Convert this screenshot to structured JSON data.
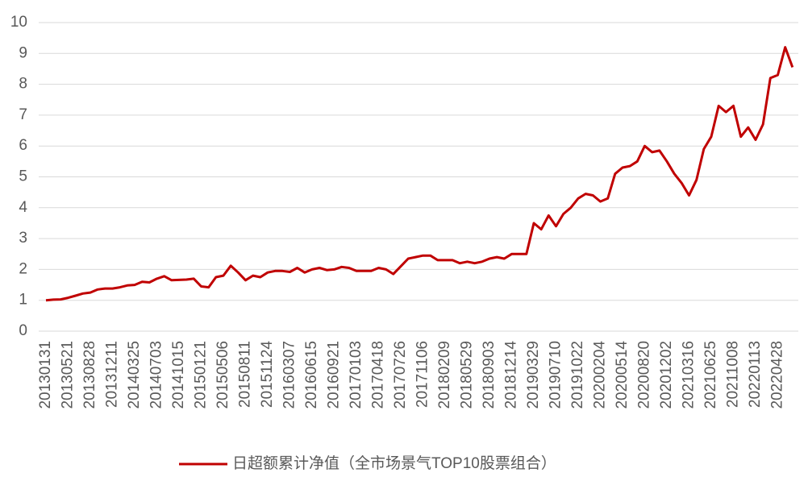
{
  "chart_data": {
    "type": "line",
    "categories": [
      "20130131",
      null,
      null,
      "20130521",
      null,
      null,
      "20130828",
      null,
      null,
      "20131211",
      null,
      null,
      "20140325",
      null,
      null,
      "20140703",
      null,
      null,
      "20141015",
      null,
      null,
      "20150121",
      null,
      null,
      "20150506",
      null,
      null,
      "20150811",
      null,
      null,
      "20151124",
      null,
      null,
      "20160307",
      null,
      null,
      "20160615",
      null,
      null,
      "20160921",
      null,
      null,
      "20170103",
      null,
      null,
      "20170418",
      null,
      null,
      "20170726",
      null,
      null,
      "20171106",
      null,
      null,
      "20180209",
      null,
      null,
      "20180529",
      null,
      null,
      "20180903",
      null,
      null,
      "20181214",
      null,
      null,
      "20190329",
      null,
      null,
      "20190710",
      null,
      null,
      "20191022",
      null,
      null,
      "20200204",
      null,
      null,
      "20200514",
      null,
      null,
      "20200820",
      null,
      null,
      "20201202",
      null,
      null,
      "20210316",
      null,
      null,
      "20210625",
      null,
      null,
      "20211008",
      null,
      null,
      "20220113",
      null,
      null,
      "20220428",
      null,
      null
    ],
    "series": [
      {
        "name": "日超额累计净值（全市场景气TOP10股票组合）",
        "color": "#c00000",
        "values": [
          1.0,
          1.02,
          1.03,
          1.08,
          1.15,
          1.22,
          1.25,
          1.35,
          1.38,
          1.38,
          1.42,
          1.48,
          1.5,
          1.6,
          1.58,
          1.7,
          1.78,
          1.65,
          1.66,
          1.67,
          1.7,
          1.45,
          1.42,
          1.75,
          1.8,
          2.12,
          1.9,
          1.65,
          1.8,
          1.75,
          1.9,
          1.95,
          1.95,
          1.92,
          2.05,
          1.9,
          2.0,
          2.05,
          1.98,
          2.0,
          2.08,
          2.05,
          1.95,
          1.95,
          1.95,
          2.05,
          2.0,
          1.85,
          2.1,
          2.35,
          2.4,
          2.45,
          2.45,
          2.3,
          2.3,
          2.3,
          2.2,
          2.25,
          2.2,
          2.25,
          2.35,
          2.4,
          2.35,
          2.5,
          2.5,
          2.5,
          3.5,
          3.3,
          3.75,
          3.4,
          3.8,
          4.0,
          4.3,
          4.45,
          4.4,
          4.2,
          4.3,
          5.1,
          5.3,
          5.35,
          5.5,
          6.0,
          5.8,
          5.85,
          5.5,
          5.1,
          4.8,
          4.4,
          4.9,
          5.9,
          6.3,
          7.3,
          7.1,
          7.3,
          6.3,
          6.6,
          6.2,
          6.7,
          8.2,
          8.3,
          9.2,
          8.55
        ]
      }
    ],
    "ylim": [
      0,
      10
    ],
    "yticks": [
      0,
      1,
      2,
      3,
      4,
      5,
      6,
      7,
      8,
      9,
      10
    ],
    "grid": true,
    "legend": "bottom"
  }
}
